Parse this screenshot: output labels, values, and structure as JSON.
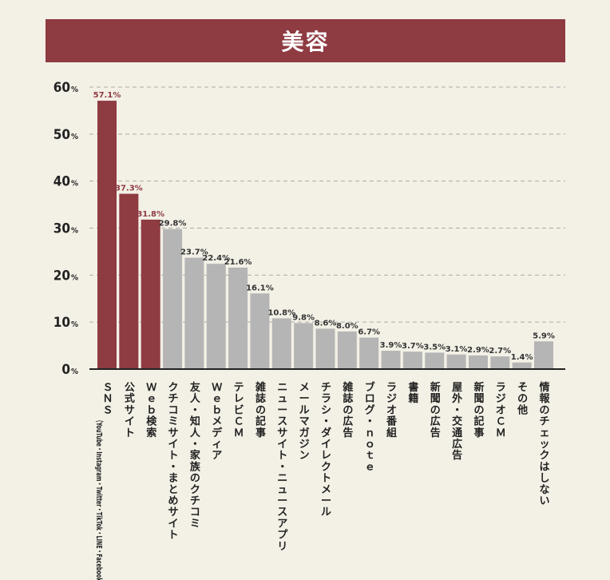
{
  "title": "美容",
  "colors": {
    "background": "#f3f0e6",
    "title_bar": "#8e3b42",
    "highlight_bar": "#8e3b42",
    "normal_bar": "#b5b5b5",
    "grid": "#aaaaaa",
    "axis": "#222222"
  },
  "chart_data": {
    "type": "bar",
    "title": "美容",
    "xlabel": "",
    "ylabel": "",
    "ylim": [
      0,
      60
    ],
    "yticks": [
      0,
      10,
      20,
      30,
      40,
      50,
      60
    ],
    "y_unit": "%",
    "grid": true,
    "grid_style": "dashed",
    "categories": [
      {
        "label": "ＳＮＳ",
        "sub": "（YouTube・Instagram・Twitter・TikTok・LINE・Facebookなど）"
      },
      {
        "label": "公式サイト"
      },
      {
        "label": "Ｗｅｂ検索"
      },
      {
        "label": "クチコミサイト・まとめサイト"
      },
      {
        "label": "友人・知人・家族のクチコミ"
      },
      {
        "label": "Ｗｅｂメディア"
      },
      {
        "label": "テレビＣＭ"
      },
      {
        "label": "雑誌の記事"
      },
      {
        "label": "ニュースサイト・ニュースアプリ"
      },
      {
        "label": "メールマガジン"
      },
      {
        "label": "チラシ・ダイレクトメール"
      },
      {
        "label": "雑誌の広告"
      },
      {
        "label": "ブログ・ｎｏｔｅ"
      },
      {
        "label": "ラジオ番組"
      },
      {
        "label": "書籍"
      },
      {
        "label": "新聞の広告"
      },
      {
        "label": "屋外・交通広告"
      },
      {
        "label": "新聞の記事"
      },
      {
        "label": "ラジオＣＭ"
      },
      {
        "label": "その他"
      },
      {
        "label": "情報のチェックはしない"
      }
    ],
    "values": [
      57.1,
      37.3,
      31.8,
      29.8,
      23.7,
      22.4,
      21.6,
      16.1,
      10.8,
      9.8,
      8.6,
      8.0,
      6.7,
      3.9,
      3.7,
      3.5,
      3.1,
      2.9,
      2.7,
      1.4,
      5.9
    ],
    "value_labels": [
      "57.1%",
      "37.3%",
      "31.8%",
      "29.8%",
      "23.7%",
      "22.4%",
      "21.6%",
      "16.1%",
      "10.8%",
      "9.8%",
      "8.6%",
      "8.0%",
      "6.7%",
      "3.9%",
      "3.7%",
      "3.5%",
      "3.1%",
      "2.9%",
      "2.7%",
      "1.4%",
      "5.9%"
    ],
    "highlighted": [
      true,
      true,
      true,
      false,
      false,
      false,
      false,
      false,
      false,
      false,
      false,
      false,
      false,
      false,
      false,
      false,
      false,
      false,
      false,
      false,
      false
    ]
  }
}
